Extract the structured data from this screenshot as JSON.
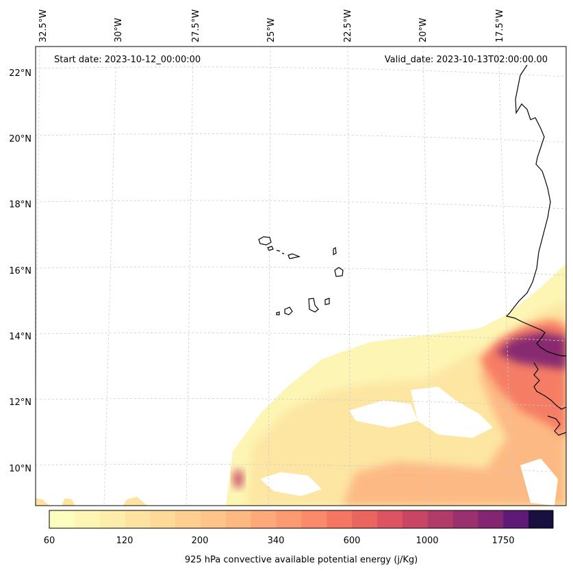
{
  "map": {
    "start_date_text": "Start date: 2023-10-12_00:00:00",
    "valid_date_text": "Valid_date: 2023-10-13T02:00:00.00",
    "lon_labels": [
      "32.5°W",
      "30°W",
      "27.5°W",
      "25°W",
      "22.5°W",
      "20°W",
      "17.5°W"
    ],
    "lat_labels": [
      "22°N",
      "20°N",
      "18°N",
      "16°N",
      "14°N",
      "12°N",
      "10°N"
    ],
    "colorbar": {
      "label": "925 hPa convective available potential energy (j/Kg)",
      "tick_labels": [
        "60",
        "120",
        "200",
        "340",
        "600",
        "1000",
        "1750"
      ],
      "levels": 20,
      "colors": [
        "#fcfdbf",
        "#fdf5b4",
        "#fdedaa",
        "#fde3a0",
        "#fed998",
        "#fecf91",
        "#fec48a",
        "#feb882",
        "#fda97a",
        "#fc9a72",
        "#fa8a6a",
        "#f57762",
        "#eb655f",
        "#dc5361",
        "#c84664",
        "#b13b69",
        "#9a306e",
        "#822672",
        "#5e1a76",
        "#1a1040"
      ],
      "extend": "right"
    },
    "coastline_color": "#000000",
    "grid_color": "#cccccc"
  }
}
